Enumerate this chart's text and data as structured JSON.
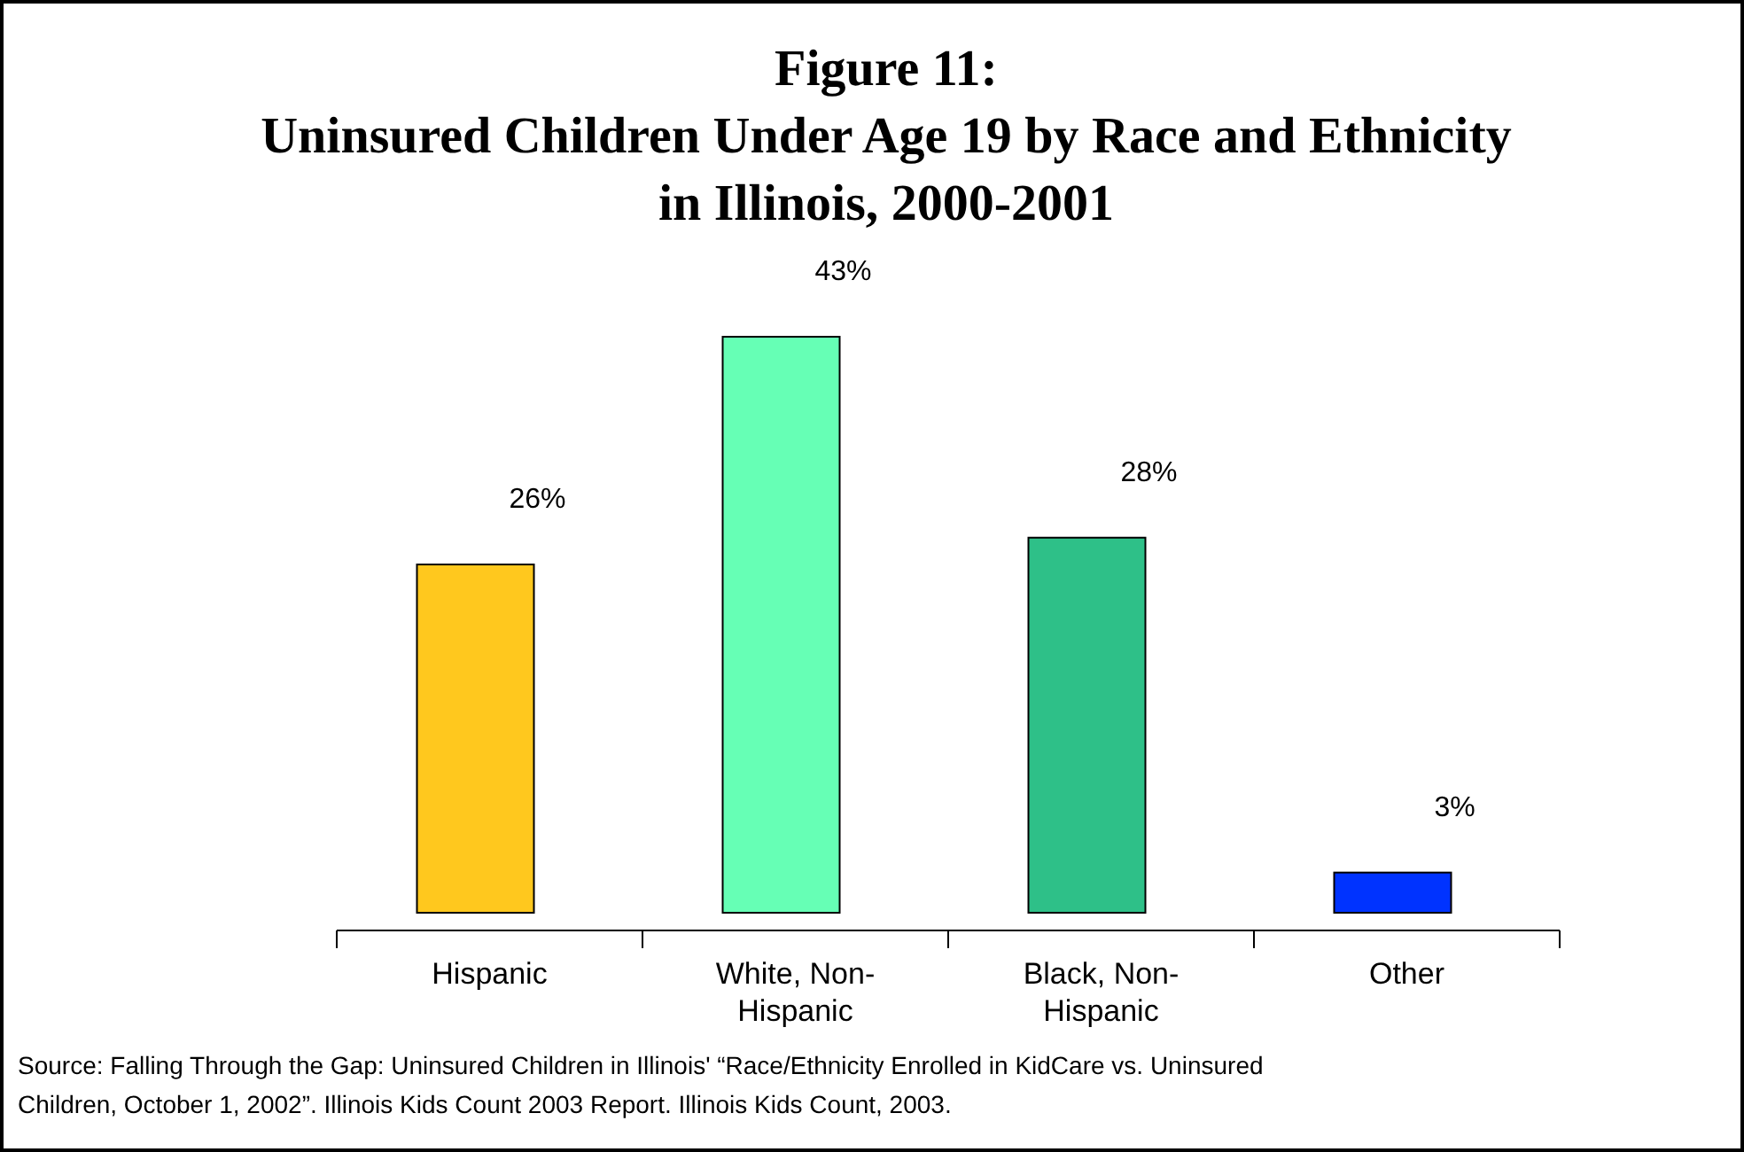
{
  "chart_data": {
    "type": "bar",
    "title": "Figure 11:\nUninsured Children Under Age 19 by Race and Ethnicity\nin Illinois, 2000-2001",
    "categories": [
      "Hispanic",
      "White, Non-Hispanic",
      "Black, Non-Hispanic",
      "Other"
    ],
    "values": [
      26,
      43,
      28,
      3
    ],
    "colors": [
      "#ffc81e",
      "#66ffb5",
      "#2ec088",
      "#0033ff"
    ],
    "value_labels": [
      "26%",
      "43%",
      "28%",
      "3%"
    ],
    "annotations": [
      "Source:  Falling Through the Gap: Uninsured Children in Illinois' “Race/Ethnicity Enrolled in KidCare vs. Uninsured Children, October 1, 2002”.  Illinois Kids Count 2003 Report.  Illinois Kids Count, 2003."
    ]
  }
}
